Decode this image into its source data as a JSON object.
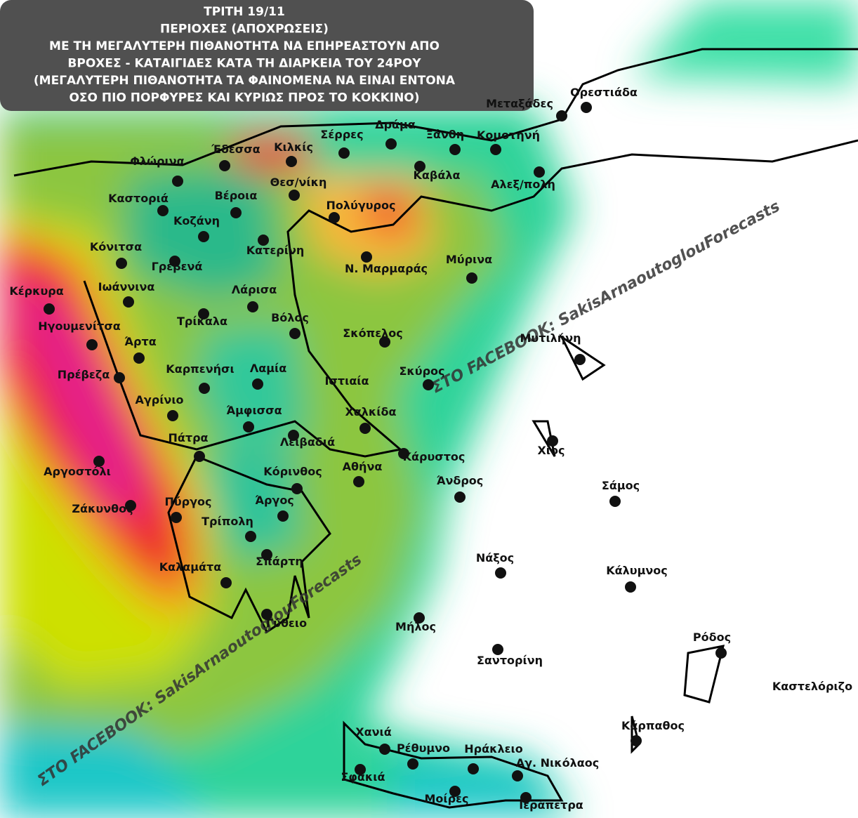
{
  "header": {
    "lines": [
      "ΤΡΙΤΗ 19/11",
      "ΠΕΡΙΟΧΕΣ (ΑΠΟΧΡΩΣΕΙΣ)",
      "ΜΕ ΤΗ ΜΕΓΑΛΥΤΕΡΗ ΠΙΘΑΝΟΤΗΤΑ ΝΑ ΕΠΗΡΕΑΣΤΟΥΝ ΑΠΟ",
      "ΒΡΟΧΕΣ - ΚΑΤΑΙΓΙΔΕΣ ΚΑΤΑ ΤΗ ΔΙΑΡΚΕΙΑ ΤΟΥ 24ΡΟΥ",
      "(ΜΕΓΑΛΥΤΕΡΗ ΠΙΘΑΝΟΤΗΤΑ ΤΑ ΦΑΙΝΟΜΕΝΑ ΝΑ ΕΙΝΑΙ ΕΝΤΟΝΑ",
      "ΟΣΟ ΠΙΟ ΠΟΡΦΥΡΕΣ ΚΑΙ ΚΥΡΙΩΣ ΠΡΟΣ ΤΟ ΚΟΚΚΙΝΟ)"
    ]
  },
  "cities": [
    "Ορεστιάδα",
    "Μεταξάδες",
    "Σέρρες",
    "Δράμα",
    "Ξάνθη",
    "Κομοτηνή",
    "Έδεσσα",
    "Κιλκίς",
    "Φλώρινα",
    "Καβάλα",
    "Αλεξ/πολη",
    "Θεσ/νίκη",
    "Καστοριά",
    "Βέροια",
    "Πολύγυρος",
    "Κοζάνη",
    "Κατερίνη",
    "Κόνιτσα",
    "Γρεβενά",
    "Ν. Μαρμαράς",
    "Μύρινα",
    "Ιωάννινα",
    "Λάρισα",
    "Κέρκυρα",
    "Τρίκαλα",
    "Βόλος",
    "Ηγουμενίτσα",
    "Σκόπελος",
    "Μυτιλήνη",
    "Άρτα",
    "Καρπενήσι",
    "Σκύρος",
    "Πρέβεζα",
    "Λαμία",
    "Ιστιαία",
    "Αγρίνιο",
    "Άμφισσα",
    "Χαλκίδα",
    "Πάτρα",
    "Λειβαδιά",
    "Κάρυστος",
    "Χίος",
    "Αργοστόλι",
    "Κόρινθος",
    "Αθήνα",
    "Άνδρος",
    "Σάμος",
    "Πύργος",
    "Ζάκυνθος",
    "Άργος",
    "Τρίπολη",
    "Νάξος",
    "Σπάρτη",
    "Κάλυμνος",
    "Καλαμάτα",
    "Γύθειο",
    "Μήλος",
    "Ρόδος",
    "Σαντορίνη",
    "Καστελόριζο",
    "Κάρπαθος",
    "Χανιά",
    "Ρέθυμνο",
    "Ηράκλειο",
    "Αγ. Νικόλαος",
    "Σφακιά",
    "Μοίρες",
    "Ιεράπετρα"
  ],
  "watermarks": [
    "ΣΤΟ FACEBOOK: SakisArnaoutoglouForecasts",
    "ΣΤΟ FACEBOOK: SakisArnaoutoglouForecasts"
  ]
}
